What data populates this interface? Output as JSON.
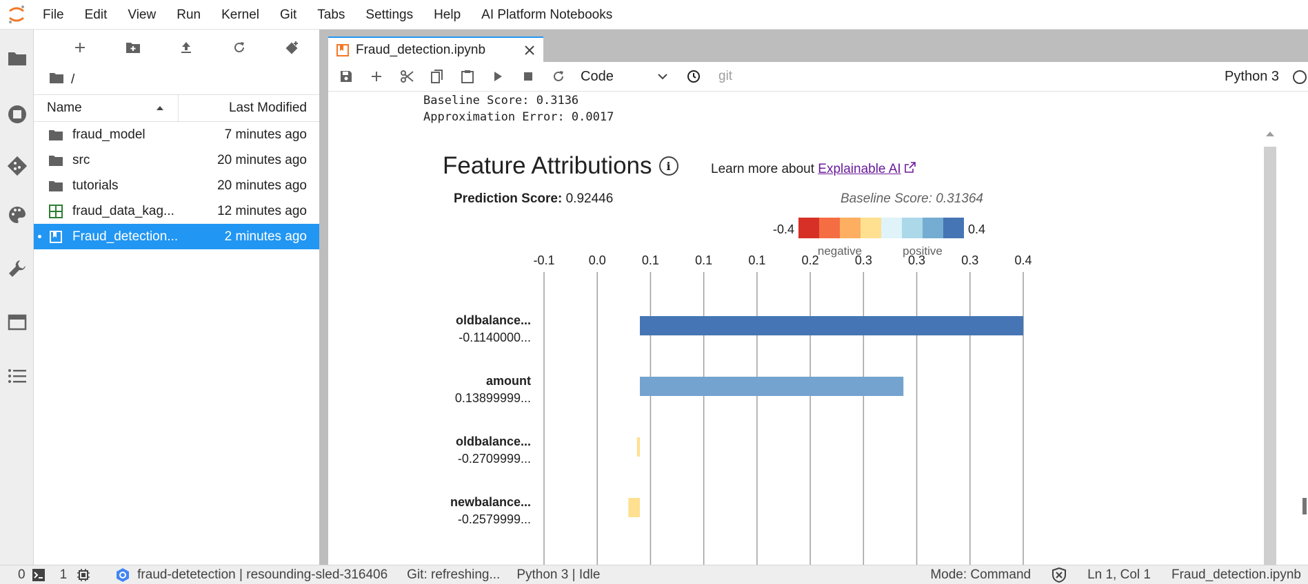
{
  "menu": [
    "File",
    "Edit",
    "View",
    "Run",
    "Kernel",
    "Git",
    "Tabs",
    "Settings",
    "Help",
    "AI Platform Notebooks"
  ],
  "colors": {
    "accent": "#2196f3",
    "logo": "#f37726"
  },
  "activity_icons": [
    "folder-icon",
    "running-icon",
    "git-icon",
    "palette-icon",
    "wrench-icon",
    "tabs-icon",
    "toc-icon"
  ],
  "filebrowser": {
    "breadcrumb": "/",
    "columns": {
      "name": "Name",
      "modified": "Last Modified"
    },
    "files": [
      {
        "name": "fraud_model",
        "modified": "7 minutes ago",
        "type": "folder"
      },
      {
        "name": "src",
        "modified": "20 minutes ago",
        "type": "folder"
      },
      {
        "name": "tutorials",
        "modified": "20 minutes ago",
        "type": "folder"
      },
      {
        "name": "fraud_data_kag...",
        "modified": "12 minutes ago",
        "type": "csv"
      },
      {
        "name": "Fraud_detection...",
        "modified": "2 minutes ago",
        "type": "notebook",
        "selected": true
      }
    ]
  },
  "tab": {
    "title": "Fraud_detection.ipynb"
  },
  "notebook_toolbar": {
    "cell_type": "Code",
    "git_label": "git",
    "kernel": "Python 3"
  },
  "output": {
    "baseline_line": "Baseline Score: 0.3136",
    "error_line": "Approximation Error: 0.0017"
  },
  "widget": {
    "title": "Feature Attributions",
    "learn_more": "Learn more about ",
    "learn_more_link": "Explainable AI",
    "prediction_label": "Prediction Score:",
    "prediction_value": " 0.92446",
    "baseline": "Baseline Score: 0.31364"
  },
  "chart_data": {
    "type": "bar",
    "orientation": "horizontal",
    "title": "Feature Attributions",
    "x_tick_labels": [
      "-0.1",
      "0.0",
      "0.1",
      "0.1",
      "0.1",
      "0.2",
      "0.3",
      "0.3",
      "0.3",
      "0.4"
    ],
    "xlim": [
      -0.1,
      0.4
    ],
    "grid": true,
    "legend": {
      "min_label": "-0.4",
      "max_label": "0.4",
      "negative_label": "negative",
      "positive_label": "positive",
      "colors": [
        "#d73027",
        "#f46d43",
        "#fdae61",
        "#fee090",
        "#e0f3f8",
        "#abd9e9",
        "#74add1",
        "#4575b4"
      ]
    },
    "bars": [
      {
        "feature": "oldbalance...",
        "feature_value": "-0.1140000...",
        "attribution": 0.4,
        "color": "#4575b4"
      },
      {
        "feature": "amount",
        "feature_value": "0.13899999...",
        "attribution": 0.275,
        "color": "#74a3cf"
      },
      {
        "feature": "oldbalance...",
        "feature_value": "-0.2709999...",
        "attribution": -0.003,
        "color": "#fee090"
      },
      {
        "feature": "newbalance...",
        "feature_value": "-0.2579999...",
        "attribution": -0.012,
        "color": "#fee090"
      }
    ]
  },
  "status": {
    "terminals": "0",
    "kernels": "1",
    "project": "fraud-detetection | resounding-sled-316406",
    "git": "Git: refreshing...",
    "kernel_status": "Python 3 | Idle",
    "mode": "Mode: Command",
    "position": "Ln 1, Col 1",
    "file": "Fraud_detection.ipynb"
  }
}
